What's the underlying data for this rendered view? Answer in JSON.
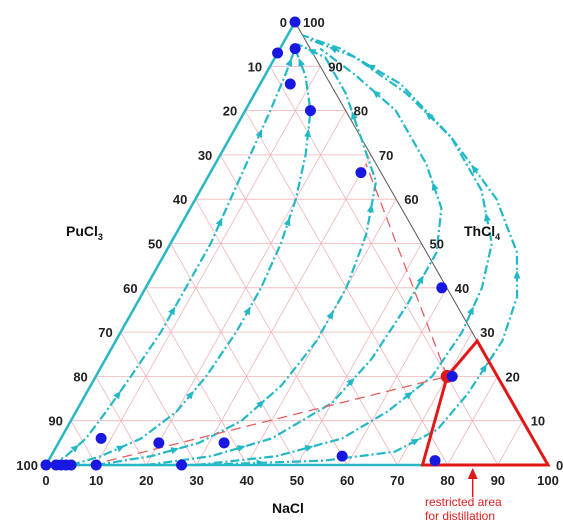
{
  "components": {
    "left": {
      "label": "PuCl",
      "sub": "3"
    },
    "right": {
      "label": "ThCl",
      "sub": "4"
    },
    "bottom": {
      "label": "NaCl"
    }
  },
  "axes": {
    "bottom_ticks": [
      "0",
      "10",
      "20",
      "30",
      "40",
      "50",
      "60",
      "70",
      "80",
      "90",
      "100"
    ],
    "left_ticks": [
      "0",
      "10",
      "20",
      "30",
      "40",
      "50",
      "60",
      "70",
      "80",
      "90",
      "100"
    ],
    "right_ticks": [
      "0",
      "10",
      "20",
      "30",
      "40",
      "50",
      "60",
      "70",
      "80",
      "90",
      "100"
    ]
  },
  "annotation": {
    "line1": "restricted area",
    "line2": "for distillation"
  },
  "colors": {
    "axis": "#2ab7c4",
    "curves": "#22b8c6",
    "grid": "#f2b4b8",
    "points": "#1818e0",
    "red": "#e01818",
    "dashed_red": "#e46060"
  },
  "chart_data": {
    "type": "ternary",
    "components": [
      "NaCl",
      "PuCl3",
      "ThCl4"
    ],
    "grid": true,
    "composition_points": [
      {
        "NaCl": 0,
        "ThCl4": 100
      },
      {
        "NaCl": 3,
        "ThCl4": 94
      },
      {
        "NaCl": 0,
        "ThCl4": 93
      },
      {
        "NaCl": 6,
        "ThCl4": 86
      },
      {
        "NaCl": 13,
        "ThCl4": 80
      },
      {
        "NaCl": 30,
        "ThCl4": 66
      },
      {
        "NaCl": 59,
        "ThCl4": 40
      },
      {
        "NaCl": 71,
        "ThCl4": 20
      },
      {
        "NaCl": 77,
        "ThCl4": 1
      },
      {
        "NaCl": 58,
        "ThCl4": 2
      },
      {
        "NaCl": 27,
        "ThCl4": 0
      },
      {
        "NaCl": 33,
        "ThCl4": 5
      },
      {
        "NaCl": 20,
        "ThCl4": 5
      },
      {
        "NaCl": 8,
        "ThCl4": 6
      },
      {
        "NaCl": 0,
        "ThCl4": 0
      },
      {
        "NaCl": 2,
        "ThCl4": 0
      },
      {
        "NaCl": 3,
        "ThCl4": 0
      },
      {
        "NaCl": 4,
        "ThCl4": 0
      },
      {
        "NaCl": 5,
        "ThCl4": 0
      },
      {
        "NaCl": 10,
        "ThCl4": 0
      }
    ],
    "residue_curves": [
      [
        [
          1,
          0
        ],
        [
          3,
          2
        ],
        [
          5,
          6
        ],
        [
          6,
          12
        ],
        [
          7,
          20
        ],
        [
          8,
          30
        ],
        [
          8,
          40
        ],
        [
          8,
          50
        ],
        [
          7,
          60
        ],
        [
          6,
          70
        ],
        [
          5,
          80
        ],
        [
          4,
          88
        ],
        [
          3,
          94
        ]
      ],
      [
        [
          5,
          0
        ],
        [
          10,
          2
        ],
        [
          16,
          6
        ],
        [
          20,
          12
        ],
        [
          22,
          20
        ],
        [
          23,
          30
        ],
        [
          23,
          40
        ],
        [
          22,
          50
        ],
        [
          20,
          60
        ],
        [
          17,
          70
        ],
        [
          13,
          80
        ],
        [
          8,
          88
        ],
        [
          3,
          94
        ]
      ],
      [
        [
          10,
          0
        ],
        [
          20,
          2
        ],
        [
          28,
          5
        ],
        [
          34,
          10
        ],
        [
          38,
          18
        ],
        [
          40,
          28
        ],
        [
          40,
          40
        ],
        [
          38,
          52
        ],
        [
          34,
          64
        ],
        [
          26,
          74
        ],
        [
          18,
          84
        ],
        [
          10,
          92
        ],
        [
          3,
          95
        ]
      ],
      [
        [
          20,
          0
        ],
        [
          32,
          2
        ],
        [
          42,
          6
        ],
        [
          50,
          14
        ],
        [
          53,
          24
        ],
        [
          54,
          36
        ],
        [
          54,
          48
        ],
        [
          50,
          58
        ],
        [
          42,
          68
        ],
        [
          30,
          80
        ],
        [
          18,
          88
        ],
        [
          8,
          94
        ]
      ],
      [
        [
          30,
          0
        ],
        [
          45,
          2
        ],
        [
          56,
          6
        ],
        [
          62,
          12
        ],
        [
          67,
          20
        ],
        [
          68,
          30
        ],
        [
          67,
          40
        ],
        [
          64,
          50
        ],
        [
          56,
          62
        ],
        [
          44,
          74
        ],
        [
          30,
          84
        ],
        [
          16,
          92
        ],
        [
          5,
          96
        ]
      ],
      [
        [
          5,
          0
        ],
        [
          30,
          0
        ],
        [
          55,
          1
        ],
        [
          68,
          3
        ],
        [
          74,
          8
        ],
        [
          76,
          16
        ],
        [
          77,
          28
        ],
        [
          75,
          38
        ],
        [
          70,
          48
        ],
        [
          60,
          60
        ],
        [
          44,
          74
        ],
        [
          28,
          86
        ],
        [
          12,
          94
        ],
        [
          3,
          97
        ]
      ]
    ],
    "dashed_lines": [
      {
        "from": {
          "NaCl": 9,
          "ThCl4": 0
        },
        "to": {
          "NaCl": 70,
          "ThCl4": 20
        }
      },
      {
        "from": {
          "NaCl": 70,
          "ThCl4": 20
        },
        "to": {
          "NaCl": 30,
          "ThCl4": 68
        }
      }
    ],
    "azeotrope": {
      "NaCl": 70,
      "ThCl4": 20
    },
    "restricted_region": [
      {
        "NaCl": 70,
        "ThCl4": 20
      },
      {
        "NaCl": 72,
        "ThCl4": 28
      },
      {
        "NaCl": 100,
        "ThCl4": 0
      },
      {
        "NaCl": 75,
        "ThCl4": 0
      }
    ],
    "restricted_arrow_at": {
      "NaCl": 85
    }
  }
}
